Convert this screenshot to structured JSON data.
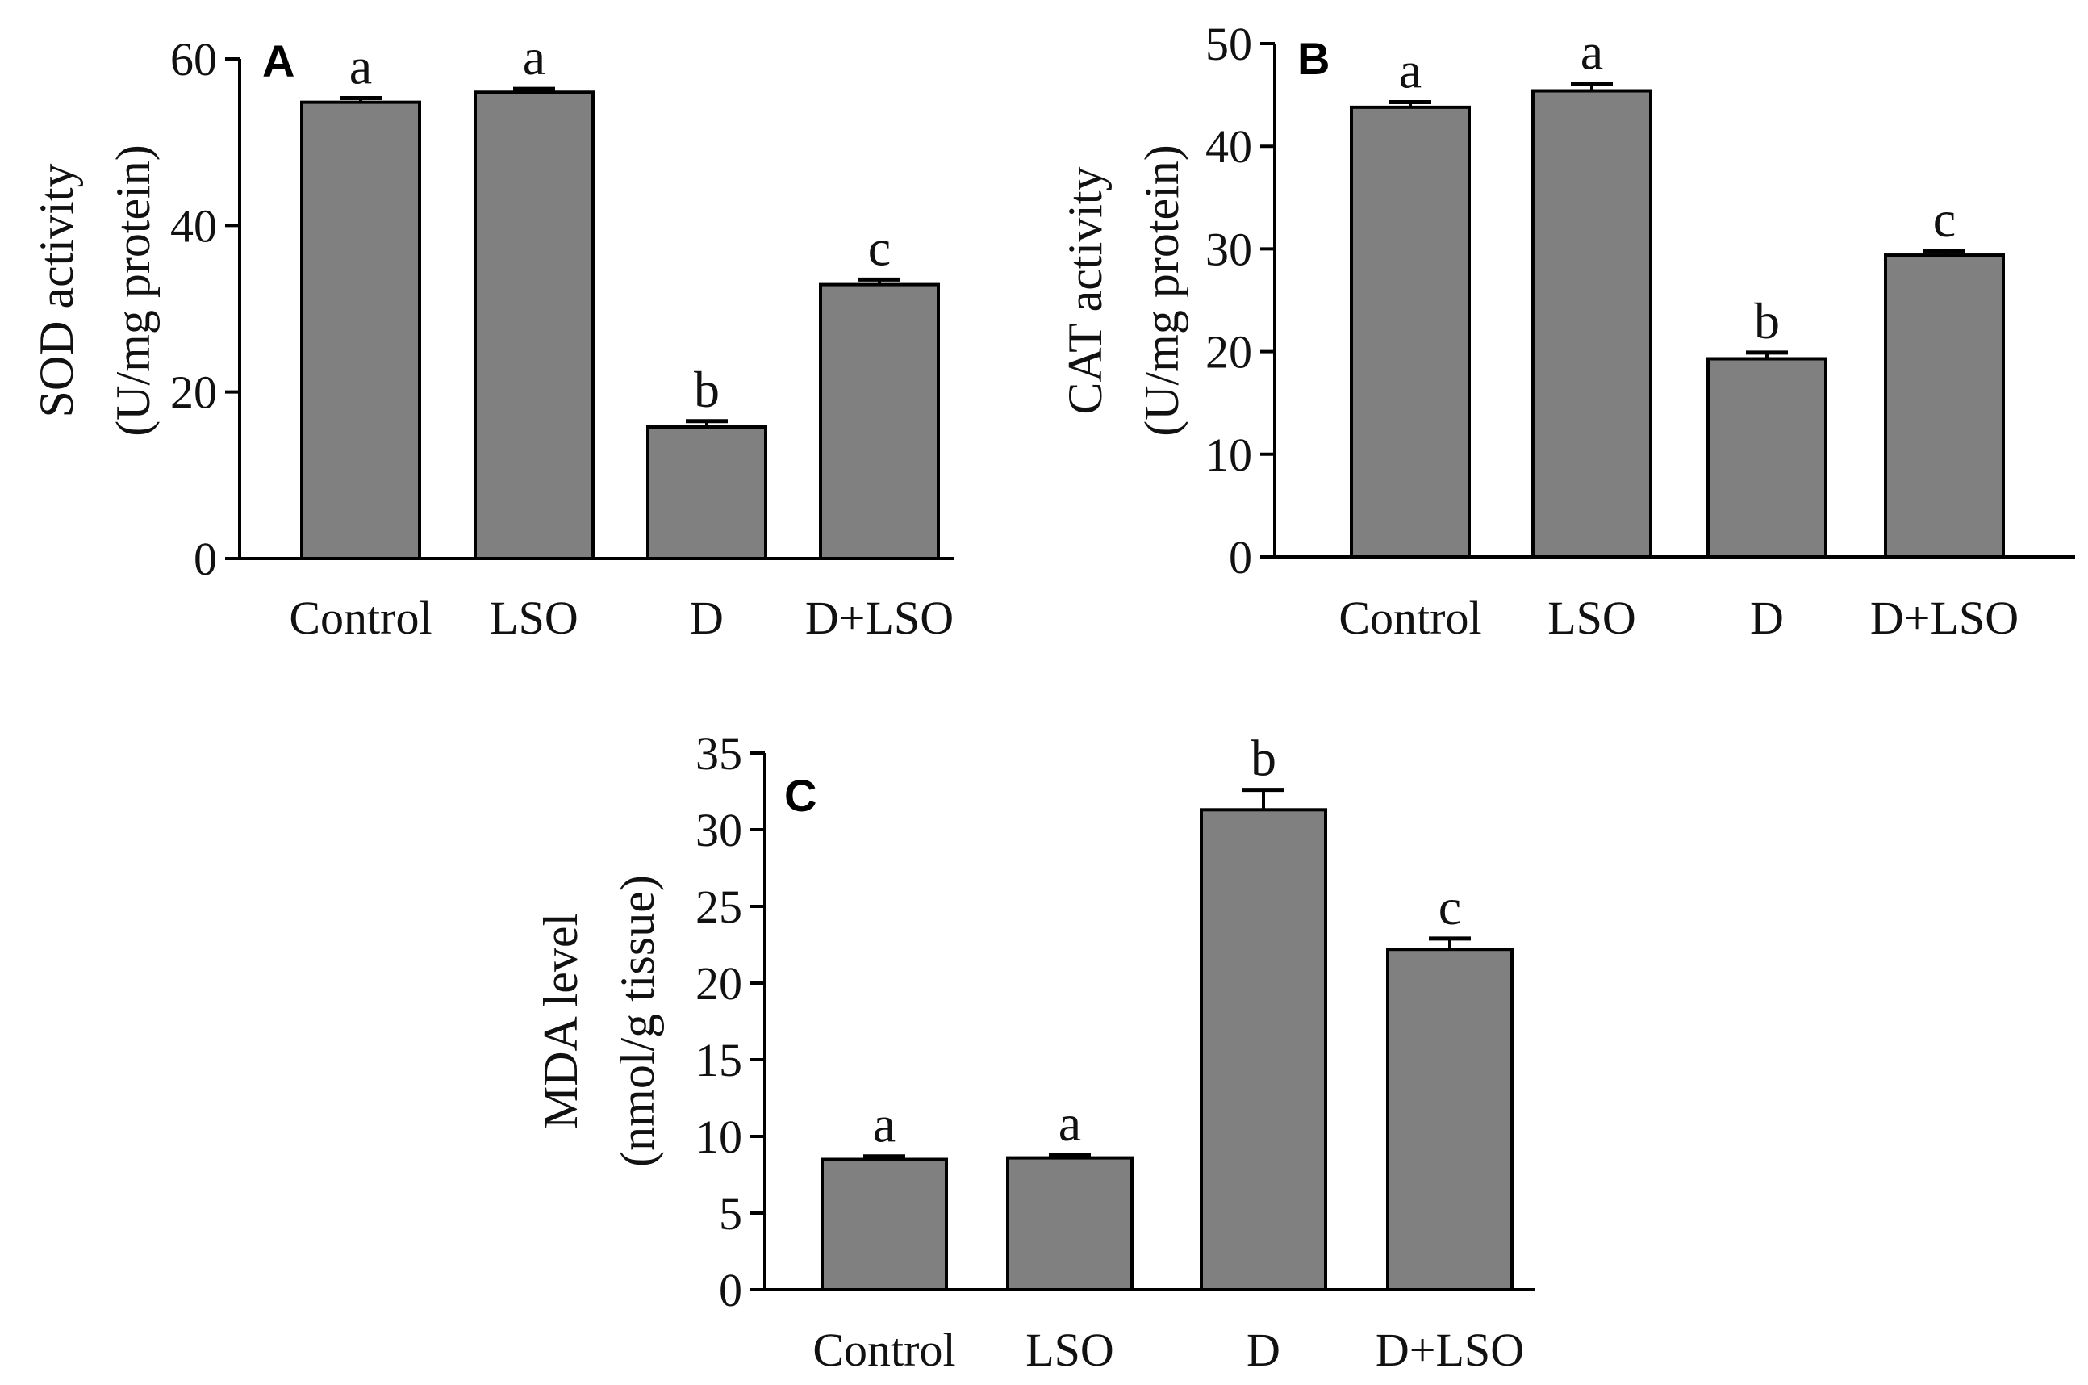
{
  "chart_data": [
    {
      "type": "bar",
      "panel": "A",
      "categories": [
        "Control",
        "LSO",
        "D",
        "D+LSO"
      ],
      "values": [
        54.8,
        56.0,
        15.8,
        32.9
      ],
      "errors": [
        0.5,
        0.4,
        0.7,
        0.6
      ],
      "significance": [
        "a",
        "a",
        "b",
        "c"
      ],
      "ylabel_line1": "SOD activity",
      "ylabel_line2": "(U/mg protein)",
      "ylim": [
        0,
        60
      ],
      "yticks": [
        0,
        20,
        40,
        60
      ],
      "ytick_labels": [
        "0",
        "20",
        "40",
        "60"
      ],
      "bar_color": "#808080"
    },
    {
      "type": "bar",
      "panel": "B",
      "categories": [
        "Control",
        "LSO",
        "D",
        "D+LSO"
      ],
      "values": [
        43.8,
        45.4,
        19.3,
        29.4
      ],
      "errors": [
        0.5,
        0.7,
        0.6,
        0.4
      ],
      "significance": [
        "a",
        "a",
        "b",
        "c"
      ],
      "ylabel_line1": "CAT activity",
      "ylabel_line2": "(U/mg protein)",
      "ylim": [
        0,
        50
      ],
      "yticks": [
        0,
        10,
        20,
        30,
        40,
        50
      ],
      "ytick_labels": [
        "0",
        "10",
        "20",
        "30",
        "40",
        "50"
      ],
      "bar_color": "#808080"
    },
    {
      "type": "bar",
      "panel": "C",
      "categories": [
        "Control",
        "LSO",
        "D",
        "D+LSO"
      ],
      "values": [
        8.5,
        8.6,
        31.3,
        22.2
      ],
      "errors": [
        0.2,
        0.2,
        1.3,
        0.7
      ],
      "significance": [
        "a",
        "a",
        "b",
        "c"
      ],
      "ylabel_line1": "MDA level",
      "ylabel_line2": "(nmol/g tissue)",
      "ylim": [
        0,
        35
      ],
      "yticks": [
        0,
        5,
        10,
        15,
        20,
        25,
        30,
        35
      ],
      "ytick_labels": [
        "0",
        "5",
        "10",
        "15",
        "20",
        "25",
        "30",
        "35"
      ],
      "bar_color": "#808080"
    }
  ]
}
